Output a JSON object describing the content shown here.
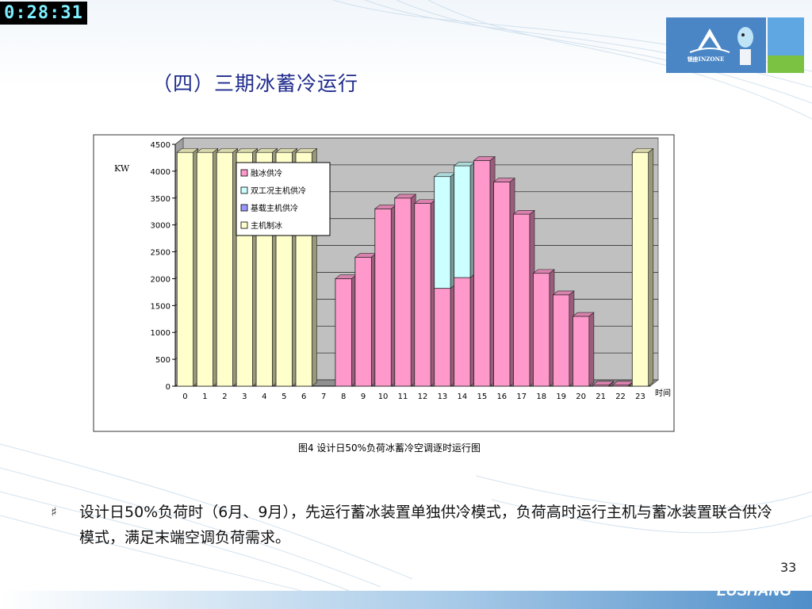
{
  "timer": "0:28:31",
  "logo": {
    "text": "银座INZONE"
  },
  "title": "（四）三期冰蓄冷运行",
  "bullet": {
    "icon": "hash-bullet-icon",
    "text": "设计日50%负荷时（6月、9月），先运行蓄冰装置单独供冷模式，负荷高时运行主机与蓄冰装置联合供冷模式，满足末端空调负荷需求。"
  },
  "page_number": "33",
  "footer_logo": "LUSHANG",
  "colors": {
    "title": "#1e2a8c",
    "footer_band": "#6fa6d6",
    "plot_bg": "#c0c0c0",
    "ice": "#ff99cc",
    "combo": "#ccffff",
    "base": "#ffffcc"
  },
  "chart_data": {
    "type": "bar",
    "stacked": true,
    "caption": "图4 设计日50%负荷冰蓄冷空调逐时运行图",
    "ylabel": "KW",
    "xlabel": "时间",
    "ylim": [
      0,
      4500
    ],
    "yticks": [
      "0",
      "500",
      "1000",
      "1500",
      "2000",
      "2500",
      "3000",
      "3500",
      "4000",
      "4500"
    ],
    "categories": [
      "0",
      "1",
      "2",
      "3",
      "4",
      "5",
      "6",
      "7",
      "8",
      "9",
      "10",
      "11",
      "12",
      "13",
      "14",
      "15",
      "16",
      "17",
      "18",
      "19",
      "20",
      "21",
      "22",
      "23"
    ],
    "legend_position": "top-left",
    "series": [
      {
        "name": "融冰供冷",
        "color": "#ff99cc",
        "values": [
          0,
          0,
          0,
          0,
          0,
          0,
          0,
          0,
          2000,
          2400,
          3300,
          3500,
          3400,
          1820,
          2020,
          4200,
          3800,
          3200,
          2100,
          1700,
          1300,
          20,
          20,
          0
        ]
      },
      {
        "name": "双工况主机供冷",
        "color": "#ccffff",
        "values": [
          0,
          0,
          0,
          0,
          0,
          0,
          0,
          0,
          0,
          0,
          0,
          0,
          0,
          2080,
          2080,
          0,
          0,
          0,
          0,
          0,
          0,
          0,
          0,
          0
        ]
      },
      {
        "name": "基载主机供冷",
        "color": "#9999ff",
        "values": [
          0,
          0,
          0,
          0,
          0,
          0,
          0,
          0,
          0,
          0,
          0,
          0,
          0,
          0,
          0,
          0,
          0,
          0,
          0,
          0,
          0,
          0,
          0,
          0
        ]
      },
      {
        "name": "主机制冰",
        "color": "#ffffcc",
        "values": [
          4350,
          4350,
          4350,
          4350,
          4350,
          4350,
          4350,
          0,
          0,
          0,
          0,
          0,
          0,
          0,
          0,
          0,
          0,
          0,
          0,
          0,
          0,
          0,
          0,
          4350
        ]
      }
    ]
  }
}
